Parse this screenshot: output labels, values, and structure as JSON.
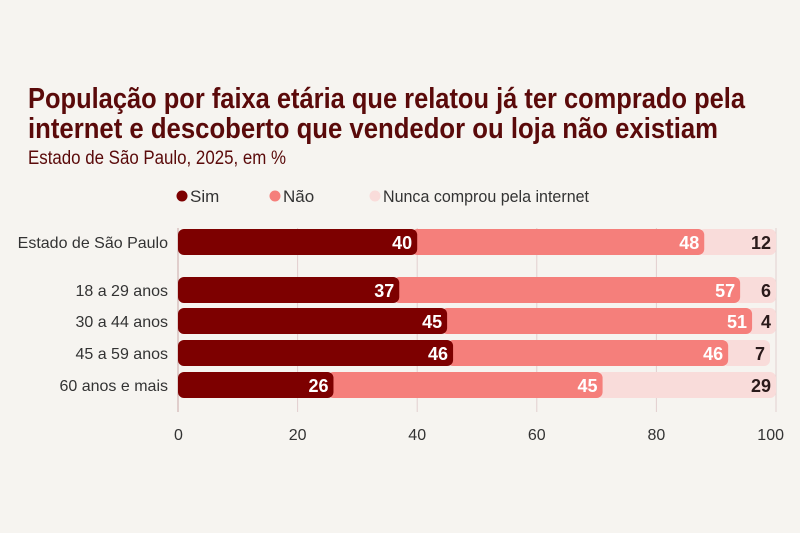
{
  "chart_data": {
    "type": "bar",
    "orientation": "horizontal",
    "stacked": true,
    "title": "População por faixa etária que relatou já ter comprado pela internet e descoberto que vendedor ou loja não existiam",
    "title_lines": [
      "População por faixa etária que relatou já ter comprado pela",
      "internet e descoberto que vendedor ou loja não existiam"
    ],
    "subtitle": "Estado de São Paulo, 2025, em %",
    "categories": [
      "Estado de São Paulo",
      "18 a 29 anos",
      "30 a 44 anos",
      "45 a 59 anos",
      "60 anos e mais"
    ],
    "series": [
      {
        "name": "Sim",
        "color": "#7d0000",
        "label_color": "#ffffff",
        "values": [
          40,
          37,
          45,
          46,
          26
        ]
      },
      {
        "name": "Não",
        "color": "#f57f7b",
        "label_color": "#ffffff",
        "values": [
          48,
          57,
          51,
          46,
          45
        ]
      },
      {
        "name": "Nunca comprou pela internet",
        "color": "#f9dcda",
        "label_color": "#2a1a1a",
        "values": [
          12,
          6,
          4,
          7,
          29
        ]
      }
    ],
    "xlim": [
      0,
      100
    ],
    "xticks": [
      0,
      20,
      40,
      60,
      80,
      100
    ],
    "grid": true,
    "legend_placement": "top",
    "title_color": "#5a0a0a"
  }
}
